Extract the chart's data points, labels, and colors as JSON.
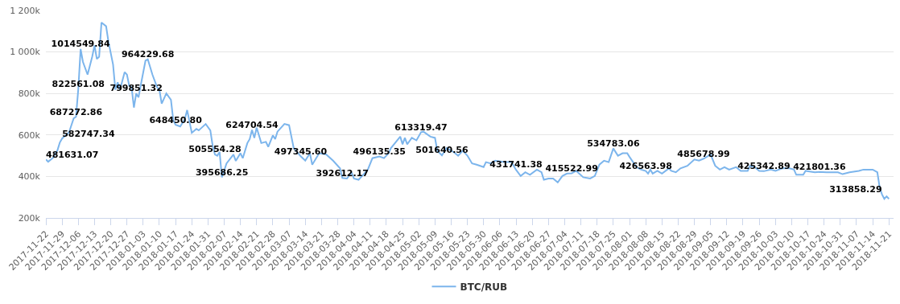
{
  "chart_data": {
    "type": "line",
    "legend": "bottom",
    "grid": "y",
    "xlim": [
      "2017-11-22",
      "2018-11-23"
    ],
    "xticks": [
      "2017-11-22",
      "2017-11-29",
      "2017-12-06",
      "2017-12-13",
      "2017-12-20",
      "2017-12-27",
      "2018-01-03",
      "2018-01-10",
      "2018-01-17",
      "2018-01-24",
      "2018-01-31",
      "2018-02-07",
      "2018-02-14",
      "2018-02-21",
      "2018-02-28",
      "2018-03-07",
      "2018-03-14",
      "2018-03-21",
      "2018-03-28",
      "2018-04-04",
      "2018-04-11",
      "2018-04-18",
      "2018-04-25",
      "2018-05-02",
      "2018-05-09",
      "2018-05-16",
      "2018-05-23",
      "2018-05-30",
      "2018-06-06",
      "2018-06-13",
      "2018-06-20",
      "2018-06-27",
      "2018-07-04",
      "2018-07-11",
      "2018-07-18",
      "2018-07-25",
      "2018-08-01",
      "2018-08-08",
      "2018-08-15",
      "2018-08-22",
      "2018-08-29",
      "2018-09-05",
      "2018-09-12",
      "2018-09-19",
      "2018-09-26",
      "2018-10-03",
      "2018-10-10",
      "2018-10-17",
      "2018-10-24",
      "2018-10-31",
      "2018-11-07",
      "2018-11-14",
      "2018-11-21"
    ],
    "ylim": [
      200000,
      1200000
    ],
    "yticks": [
      {
        "value": 200000,
        "label": "200k"
      },
      {
        "value": 400000,
        "label": "400k"
      },
      {
        "value": 600000,
        "label": "600k"
      },
      {
        "value": 800000,
        "label": "800k"
      },
      {
        "value": 1000000,
        "label": "1 000k"
      },
      {
        "value": 1200000,
        "label": "1 200k"
      }
    ],
    "series": [
      {
        "name": "BTC/RUB",
        "color": "#7cb5ec",
        "x": [
          "2017-11-22",
          "2017-11-23",
          "2017-11-25",
          "2017-11-27",
          "2017-11-28",
          "2017-11-29",
          "2017-12-02",
          "2017-12-04",
          "2017-12-05",
          "2017-12-06",
          "2017-12-07",
          "2017-12-08",
          "2017-12-10",
          "2017-12-12",
          "2017-12-13",
          "2017-12-14",
          "2017-12-15",
          "2017-12-16",
          "2017-12-18",
          "2017-12-19",
          "2017-12-21",
          "2017-12-22",
          "2017-12-23",
          "2017-12-24",
          "2017-12-26",
          "2017-12-27",
          "2017-12-28",
          "2017-12-29",
          "2017-12-30",
          "2017-12-31",
          "2018-01-01",
          "2018-01-02",
          "2018-01-04",
          "2018-01-05",
          "2018-01-07",
          "2018-01-09",
          "2018-01-10",
          "2018-01-11",
          "2018-01-13",
          "2018-01-15",
          "2018-01-16",
          "2018-01-17",
          "2018-01-19",
          "2018-01-21",
          "2018-01-22",
          "2018-01-24",
          "2018-01-26",
          "2018-01-27",
          "2018-01-30",
          "2018-02-01",
          "2018-02-02",
          "2018-02-03",
          "2018-02-04",
          "2018-02-05",
          "2018-02-06",
          "2018-02-08",
          "2018-02-11",
          "2018-02-12",
          "2018-02-14",
          "2018-02-15",
          "2018-02-17",
          "2018-02-18",
          "2018-02-19",
          "2018-02-20",
          "2018-02-21",
          "2018-02-23",
          "2018-02-25",
          "2018-02-26",
          "2018-02-28",
          "2018-03-01",
          "2018-03-02",
          "2018-03-05",
          "2018-03-07",
          "2018-03-09",
          "2018-03-10",
          "2018-03-12",
          "2018-03-14",
          "2018-03-16",
          "2018-03-17",
          "2018-03-20",
          "2018-03-23",
          "2018-03-26",
          "2018-03-29",
          "2018-03-30",
          "2018-04-01",
          "2018-04-03",
          "2018-04-04",
          "2018-04-06",
          "2018-04-08",
          "2018-04-10",
          "2018-04-12",
          "2018-04-15",
          "2018-04-17",
          "2018-04-19",
          "2018-04-20",
          "2018-04-24",
          "2018-04-25",
          "2018-04-26",
          "2018-04-27",
          "2018-04-29",
          "2018-05-01",
          "2018-05-03",
          "2018-05-04",
          "2018-05-07",
          "2018-05-09",
          "2018-05-10",
          "2018-05-12",
          "2018-05-14",
          "2018-05-17",
          "2018-05-19",
          "2018-05-21",
          "2018-05-23",
          "2018-05-25",
          "2018-05-27",
          "2018-05-30",
          "2018-05-31",
          "2018-06-02",
          "2018-06-04",
          "2018-06-08",
          "2018-06-11",
          "2018-06-13",
          "2018-06-15",
          "2018-06-17",
          "2018-06-19",
          "2018-06-22",
          "2018-06-24",
          "2018-06-25",
          "2018-06-27",
          "2018-06-29",
          "2018-07-01",
          "2018-07-03",
          "2018-07-05",
          "2018-07-07",
          "2018-07-09",
          "2018-07-12",
          "2018-07-15",
          "2018-07-17",
          "2018-07-19",
          "2018-07-21",
          "2018-07-23",
          "2018-07-25",
          "2018-07-27",
          "2018-07-29",
          "2018-07-31",
          "2018-08-01",
          "2018-08-04",
          "2018-08-06",
          "2018-08-08",
          "2018-08-09",
          "2018-08-10",
          "2018-08-11",
          "2018-08-13",
          "2018-08-15",
          "2018-08-18",
          "2018-08-19",
          "2018-08-21",
          "2018-08-23",
          "2018-08-26",
          "2018-08-29",
          "2018-08-31",
          "2018-09-02",
          "2018-09-05",
          "2018-09-07",
          "2018-09-09",
          "2018-09-11",
          "2018-09-13",
          "2018-09-16",
          "2018-09-18",
          "2018-09-21",
          "2018-09-22",
          "2018-09-24",
          "2018-09-26",
          "2018-09-28",
          "2018-10-01",
          "2018-10-03",
          "2018-10-06",
          "2018-10-09",
          "2018-10-11",
          "2018-10-12",
          "2018-10-15",
          "2018-10-16",
          "2018-10-20",
          "2018-10-22",
          "2018-10-25",
          "2018-10-27",
          "2018-10-30",
          "2018-11-01",
          "2018-11-04",
          "2018-11-08",
          "2018-11-10",
          "2018-11-14",
          "2018-11-16",
          "2018-11-17",
          "2018-11-18",
          "2018-11-19",
          "2018-11-20",
          "2018-11-21"
        ],
        "values": [
          481631.07,
          471000,
          489000,
          526000,
          563000,
          582747.34,
          613000,
          680000,
          687272.86,
          822561.08,
          1014549.84,
          952000,
          891000,
          977000,
          1032000,
          966000,
          977000,
          1142000,
          1124000,
          1050000,
          940000,
          818000,
          854000,
          818000,
          903000,
          891000,
          836000,
          830000,
          732000,
          799851.32,
          781000,
          842000,
          958000,
          964229.68,
          891000,
          830000,
          818000,
          751000,
          800000,
          769000,
          671000,
          648450.8,
          641000,
          677000,
          720000,
          610000,
          629000,
          622000,
          653000,
          622000,
          549000,
          505554.28,
          500000,
          518000,
          395686.25,
          463000,
          506000,
          475000,
          512000,
          488000,
          561000,
          580000,
          624704.54,
          586000,
          635000,
          561000,
          567000,
          543000,
          598000,
          580000,
          616000,
          653000,
          647000,
          537000,
          524000,
          497345.6,
          476000,
          512000,
          457000,
          512000,
          506000,
          476000,
          439000,
          392612.17,
          390000,
          420000,
          390000,
          384000,
          408000,
          433000,
          488000,
          496135.35,
          488000,
          512000,
          537000,
          592000,
          555000,
          586000,
          555000,
          586000,
          574000,
          613319.47,
          616000,
          592000,
          586000,
          524000,
          501640.56,
          537000,
          518000,
          500000,
          524000,
          500000,
          463000,
          457000,
          445000,
          469000,
          463000,
          476000,
          469000,
          469000,
          431741.38,
          402000,
          420000,
          408000,
          433000,
          420000,
          384000,
          390000,
          390000,
          371000,
          402000,
          414000,
          415522.99,
          427000,
          396000,
          390000,
          402000,
          457000,
          476000,
          469000,
          534783.06,
          500000,
          512000,
          512000,
          494000,
          445000,
          433000,
          426563.98,
          414000,
          433000,
          414000,
          427000,
          414000,
          439000,
          427000,
          420000,
          439000,
          451000,
          482000,
          476000,
          485678.99,
          506000,
          451000,
          433000,
          445000,
          433000,
          445000,
          427000,
          427000,
          451000,
          445000,
          427000,
          425342.89,
          433000,
          427000,
          439000,
          439000,
          433000,
          408000,
          408000,
          427000,
          420000,
          421801.36,
          420000,
          420000,
          420000,
          411000,
          420000,
          427000,
          433000,
          433000,
          420000,
          347000,
          313858.29,
          292000,
          304000,
          292000
        ],
        "value_labels": [
          "481631.07",
          null,
          null,
          null,
          null,
          "582747.34",
          null,
          null,
          "687272.86",
          "822561.08",
          "1014549.84",
          null,
          null,
          null,
          null,
          null,
          null,
          null,
          null,
          null,
          null,
          null,
          null,
          null,
          null,
          null,
          null,
          null,
          null,
          "799851.32",
          null,
          null,
          null,
          "964229.68",
          null,
          null,
          null,
          null,
          null,
          null,
          null,
          "648450.80",
          null,
          null,
          null,
          null,
          null,
          null,
          null,
          null,
          null,
          "505554.28",
          null,
          null,
          "395686.25",
          null,
          null,
          null,
          null,
          null,
          null,
          null,
          "624704.54",
          null,
          null,
          null,
          null,
          null,
          null,
          null,
          null,
          null,
          null,
          null,
          null,
          "497345.60",
          null,
          null,
          null,
          null,
          null,
          null,
          null,
          "392612.17",
          null,
          null,
          null,
          null,
          null,
          null,
          null,
          "496135.35",
          null,
          null,
          null,
          null,
          null,
          null,
          null,
          null,
          null,
          "613319.47",
          null,
          null,
          null,
          null,
          "501640.56",
          null,
          null,
          null,
          null,
          null,
          null,
          null,
          null,
          null,
          null,
          null,
          null,
          null,
          "431741.38",
          null,
          null,
          null,
          null,
          null,
          null,
          null,
          null,
          null,
          null,
          null,
          "415522.99",
          null,
          null,
          null,
          null,
          null,
          null,
          null,
          "534783.06",
          null,
          null,
          null,
          null,
          null,
          null,
          "426563.98",
          null,
          null,
          null,
          null,
          null,
          null,
          null,
          null,
          null,
          null,
          null,
          null,
          "485678.99",
          null,
          null,
          null,
          null,
          null,
          null,
          null,
          null,
          null,
          null,
          null,
          "425342.89",
          null,
          null,
          null,
          null,
          null,
          null,
          null,
          null,
          null,
          "421801.36",
          null,
          null,
          null,
          null,
          null,
          null,
          null,
          null,
          null,
          null,
          "313858.29",
          null,
          null,
          null
        ]
      }
    ]
  }
}
